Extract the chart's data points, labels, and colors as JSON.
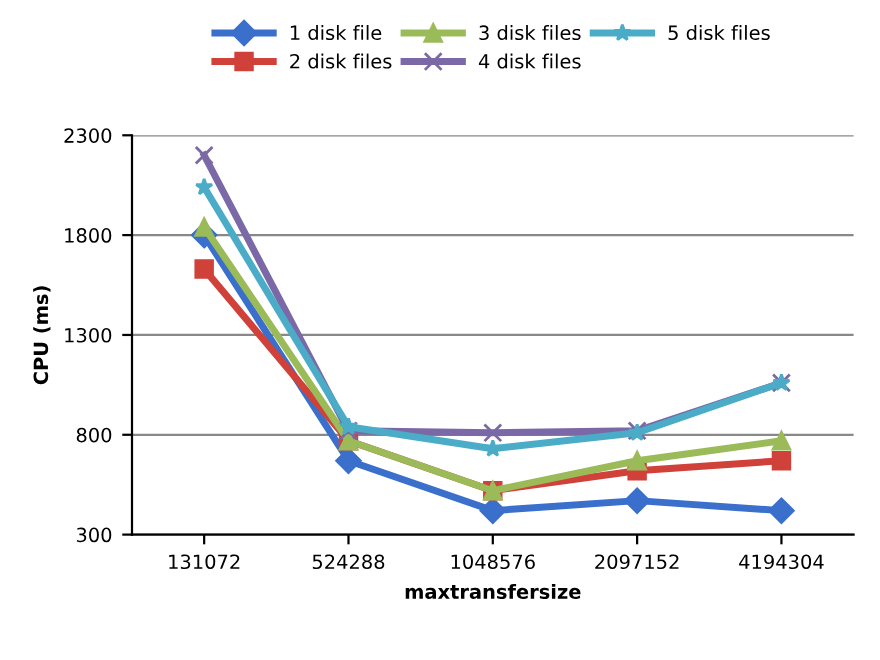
{
  "chart_data": {
    "type": "line",
    "xlabel": "maxtransfersize",
    "ylabel": "CPU (ms)",
    "categories": [
      "131072",
      "524288",
      "1048576",
      "2097152",
      "4194304"
    ],
    "ylim": [
      300,
      2300
    ],
    "yticks": [
      300,
      800,
      1300,
      1800,
      2300
    ],
    "grid": "y",
    "legend": "top",
    "series": [
      {
        "name": "1 disk file",
        "color": "#3a6fcc",
        "marker": "diamond",
        "values": [
          1800,
          670,
          420,
          470,
          420
        ]
      },
      {
        "name": "2 disk files",
        "color": "#d0413a",
        "marker": "square",
        "values": [
          1630,
          770,
          520,
          620,
          670
        ]
      },
      {
        "name": "3 disk files",
        "color": "#9bbb59",
        "marker": "triangle",
        "values": [
          1840,
          770,
          520,
          670,
          770
        ]
      },
      {
        "name": "4 disk files",
        "color": "#7b68a6",
        "marker": "cross",
        "values": [
          2200,
          820,
          810,
          820,
          1060
        ]
      },
      {
        "name": "5 disk files",
        "color": "#4aacc6",
        "marker": "star",
        "values": [
          2040,
          840,
          730,
          810,
          1060
        ]
      }
    ]
  }
}
